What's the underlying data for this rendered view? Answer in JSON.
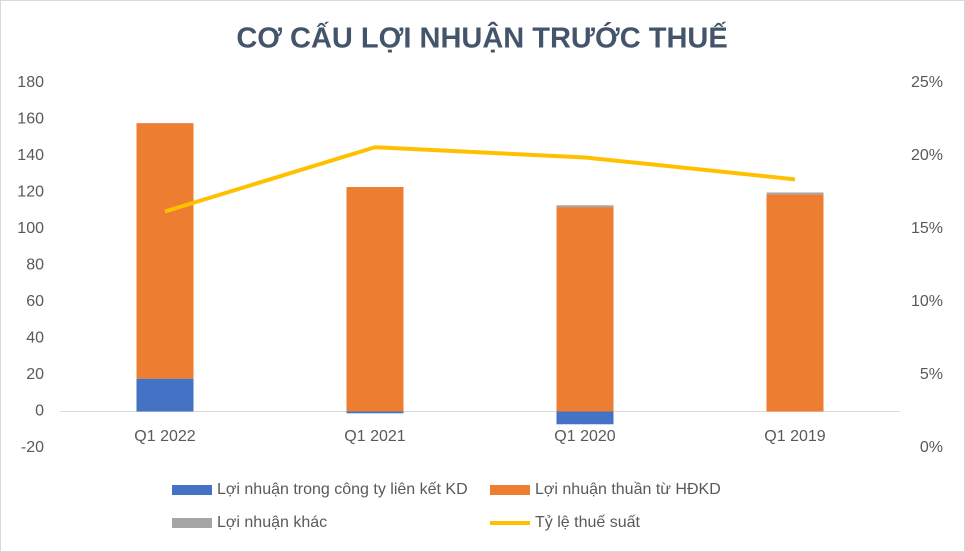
{
  "chart_data": {
    "type": "bar",
    "title": "CƠ CẤU LỢI NHUẬN TRƯỚC THUẾ",
    "categories": [
      "Q1 2022",
      "Q1 2021",
      "Q1 2020",
      "Q1 2019"
    ],
    "series": [
      {
        "name": "Lợi nhuận trong công ty liên kết KD",
        "color": "#4472c4",
        "values": [
          18,
          -1,
          -7,
          0
        ]
      },
      {
        "name": "Lợi nhuận thuần từ HĐKD",
        "color": "#ed7d31",
        "values": [
          140,
          123,
          112,
          119
        ]
      },
      {
        "name": "Lợi nhuận khác",
        "color": "#a5a5a5",
        "values": [
          0,
          0,
          1,
          1
        ]
      },
      {
        "name": "Tỷ lệ thuế suất",
        "color": "#ffc000",
        "type": "line",
        "axis": "y2",
        "values": [
          16.2,
          20.6,
          19.9,
          18.4
        ]
      }
    ],
    "ylim": [
      -20,
      180
    ],
    "yticks": [
      -20,
      0,
      20,
      40,
      60,
      80,
      100,
      120,
      140,
      160,
      180
    ],
    "y2lim": [
      0,
      25
    ],
    "y2ticks": [
      {
        "value": 0,
        "label": "0%"
      },
      {
        "value": 5,
        "label": "5%"
      },
      {
        "value": 10,
        "label": "10%"
      },
      {
        "value": 15,
        "label": "15%"
      },
      {
        "value": 20,
        "label": "20%"
      },
      {
        "value": 25,
        "label": "25%"
      }
    ],
    "grid": false,
    "legend": "bottom"
  }
}
